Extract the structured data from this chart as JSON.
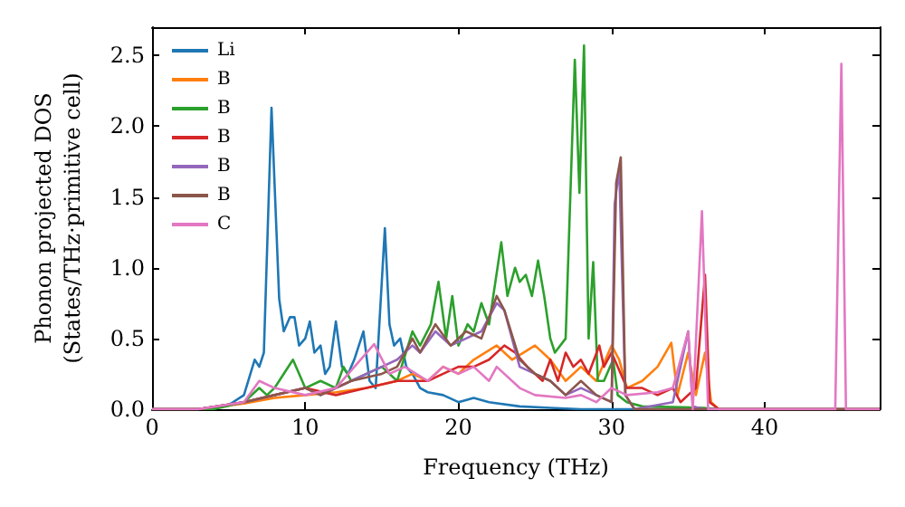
{
  "chart_data": {
    "type": "line",
    "xlabel": "Frequency (THz)",
    "ylabel": "Phonon projected DOS\n(States/THz·primitive cell)",
    "xlim": [
      0,
      47.5
    ],
    "xticks": [
      0,
      10,
      20,
      30,
      40
    ],
    "ylim": [
      0,
      2.7
    ],
    "yticks": [
      {
        "value": 0,
        "label": "0.0"
      },
      {
        "value": 0.5,
        "label": "0.5"
      },
      {
        "value": 1,
        "label": "1.0"
      },
      {
        "value": 1.5,
        "label": "1.5"
      },
      {
        "value": 2,
        "label": "2.0"
      },
      {
        "value": 2.5,
        "label": "2.5"
      }
    ],
    "grid": false,
    "legend": "top left",
    "marker": "none",
    "line_style": "solid",
    "series": [
      {
        "name": "Li",
        "color": "#1f77b4",
        "x": [
          0,
          3,
          5,
          6,
          6.7,
          7,
          7.3,
          7.8,
          8.3,
          8.6,
          9,
          9.3,
          9.6,
          10,
          10.3,
          10.6,
          11,
          11.3,
          11.6,
          12,
          12.4,
          12.8,
          13.2,
          13.8,
          14.2,
          14.6,
          15.2,
          15.5,
          15.8,
          16.2,
          16.6,
          17,
          17.5,
          18,
          19,
          20,
          21,
          22,
          24,
          26,
          28,
          47.5
        ],
        "values": [
          0,
          0,
          0.03,
          0.1,
          0.35,
          0.3,
          0.4,
          2.13,
          0.78,
          0.55,
          0.65,
          0.65,
          0.45,
          0.5,
          0.62,
          0.4,
          0.45,
          0.25,
          0.3,
          0.62,
          0.3,
          0.25,
          0.35,
          0.55,
          0.2,
          0.15,
          1.28,
          0.6,
          0.45,
          0.5,
          0.3,
          0.25,
          0.15,
          0.12,
          0.1,
          0.05,
          0.08,
          0.05,
          0.02,
          0.01,
          0,
          0
        ]
      },
      {
        "name": "B",
        "color": "#ff7f0e",
        "x": [
          0,
          3,
          6,
          8,
          10,
          12,
          14,
          16,
          17,
          18,
          19,
          20,
          21,
          22.5,
          23.5,
          25,
          26,
          27,
          28,
          29,
          30,
          30.5,
          31,
          32,
          33,
          33.9,
          34.3,
          35,
          35.5,
          36.1,
          36.5,
          37,
          47.5
        ],
        "values": [
          0,
          0,
          0.04,
          0.08,
          0.1,
          0.12,
          0.15,
          0.2,
          0.25,
          0.2,
          0.3,
          0.25,
          0.35,
          0.45,
          0.35,
          0.45,
          0.35,
          0.2,
          0.3,
          0.2,
          0.45,
          0.35,
          0.15,
          0.2,
          0.3,
          0.47,
          0.1,
          0.4,
          0.1,
          0.4,
          0.05,
          0,
          0
        ]
      },
      {
        "name": "B",
        "color": "#2ca02c",
        "x": [
          0,
          4,
          6,
          7,
          7.5,
          8,
          9.2,
          10,
          11,
          12,
          12.5,
          13,
          14,
          15,
          16,
          17,
          17.5,
          18.2,
          18.7,
          19.2,
          19.6,
          20,
          20.6,
          21,
          21.5,
          22,
          22.8,
          23.2,
          23.7,
          24,
          24.4,
          24.8,
          25.2,
          25.6,
          26,
          26.3,
          27,
          27.6,
          27.9,
          28.2,
          28.5,
          28.8,
          29.1,
          29.5,
          30.1,
          30.4,
          31,
          32,
          36,
          37,
          47.5
        ],
        "values": [
          0,
          0,
          0.05,
          0.15,
          0.1,
          0.15,
          0.35,
          0.15,
          0.2,
          0.15,
          0.3,
          0.2,
          0.25,
          0.3,
          0.2,
          0.55,
          0.45,
          0.6,
          0.9,
          0.5,
          0.8,
          0.45,
          0.6,
          0.55,
          0.75,
          0.6,
          1.18,
          0.8,
          1.0,
          0.9,
          0.95,
          0.8,
          1.05,
          0.8,
          0.5,
          0.4,
          0.5,
          2.47,
          1.53,
          2.57,
          0.5,
          1.04,
          0.2,
          0.2,
          0.35,
          0.1,
          0.05,
          0.02,
          0.01,
          0,
          0
        ]
      },
      {
        "name": "B",
        "color": "#d62728",
        "x": [
          0,
          3,
          6,
          8,
          10,
          12,
          14,
          16,
          18,
          19,
          20,
          21,
          22,
          23,
          23.7,
          24.5,
          25.5,
          26,
          26.5,
          27,
          27.5,
          28,
          28.5,
          29.2,
          29.5,
          30,
          31,
          32,
          33,
          34,
          34.5,
          35.5,
          36.1,
          36.4,
          37,
          47.5
        ],
        "values": [
          0,
          0,
          0.05,
          0.1,
          0.15,
          0.1,
          0.15,
          0.2,
          0.2,
          0.25,
          0.3,
          0.3,
          0.35,
          0.45,
          0.4,
          0.3,
          0.2,
          0.35,
          0.2,
          0.4,
          0.3,
          0.35,
          0.25,
          0.45,
          0.3,
          0.4,
          0.15,
          0.15,
          0.1,
          0.15,
          0.05,
          0.15,
          0.95,
          0.05,
          0,
          0
        ]
      },
      {
        "name": "B",
        "color": "#9467bd",
        "x": [
          0,
          3,
          6,
          8,
          10,
          11,
          13,
          15,
          16,
          17,
          17.5,
          18.5,
          19.5,
          20.5,
          21.5,
          22.5,
          23,
          24,
          25,
          26,
          27,
          28,
          29,
          30,
          30.2,
          30.5,
          30.9,
          31.5,
          34,
          35,
          35.3,
          36,
          47.5
        ],
        "values": [
          0,
          0,
          0.05,
          0.1,
          0.15,
          0.1,
          0.2,
          0.3,
          0.35,
          0.45,
          0.4,
          0.55,
          0.45,
          0.5,
          0.55,
          0.75,
          0.7,
          0.3,
          0.25,
          0.2,
          0.1,
          0.15,
          0.1,
          0.05,
          1.45,
          1.7,
          0.1,
          0,
          0.05,
          0.55,
          0.02,
          0,
          0
        ]
      },
      {
        "name": "B",
        "color": "#8c564b",
        "x": [
          0,
          3,
          6,
          8,
          10,
          11,
          13,
          15,
          16,
          17,
          17.5,
          18.5,
          19.5,
          20.5,
          21.5,
          22.5,
          23,
          24,
          25,
          26,
          27,
          28,
          29,
          30,
          30.3,
          30.6,
          30.9,
          31.5,
          47.5
        ],
        "values": [
          0,
          0,
          0.05,
          0.1,
          0.15,
          0.1,
          0.2,
          0.25,
          0.3,
          0.5,
          0.4,
          0.6,
          0.45,
          0.55,
          0.5,
          0.8,
          0.7,
          0.35,
          0.25,
          0.2,
          0.1,
          0.2,
          0.1,
          0.05,
          1.6,
          1.78,
          0.1,
          0,
          0
        ]
      },
      {
        "name": "C",
        "color": "#e377c2",
        "x": [
          0,
          3,
          6,
          7,
          8,
          10,
          12,
          14.5,
          15.5,
          16.5,
          18,
          19,
          20,
          21,
          22,
          22.5,
          24,
          25,
          27,
          28,
          29,
          30,
          31,
          33,
          34,
          35,
          35.3,
          35.9,
          36.3,
          44.6,
          45,
          45.3,
          47.5
        ],
        "values": [
          0,
          0,
          0.05,
          0.2,
          0.15,
          0.1,
          0.15,
          0.46,
          0.25,
          0.3,
          0.2,
          0.3,
          0.25,
          0.3,
          0.2,
          0.3,
          0.15,
          0.1,
          0.08,
          0.1,
          0.05,
          0.15,
          0.1,
          0.12,
          0.15,
          0.55,
          0,
          1.4,
          0,
          0,
          2.44,
          0,
          0
        ]
      }
    ]
  }
}
